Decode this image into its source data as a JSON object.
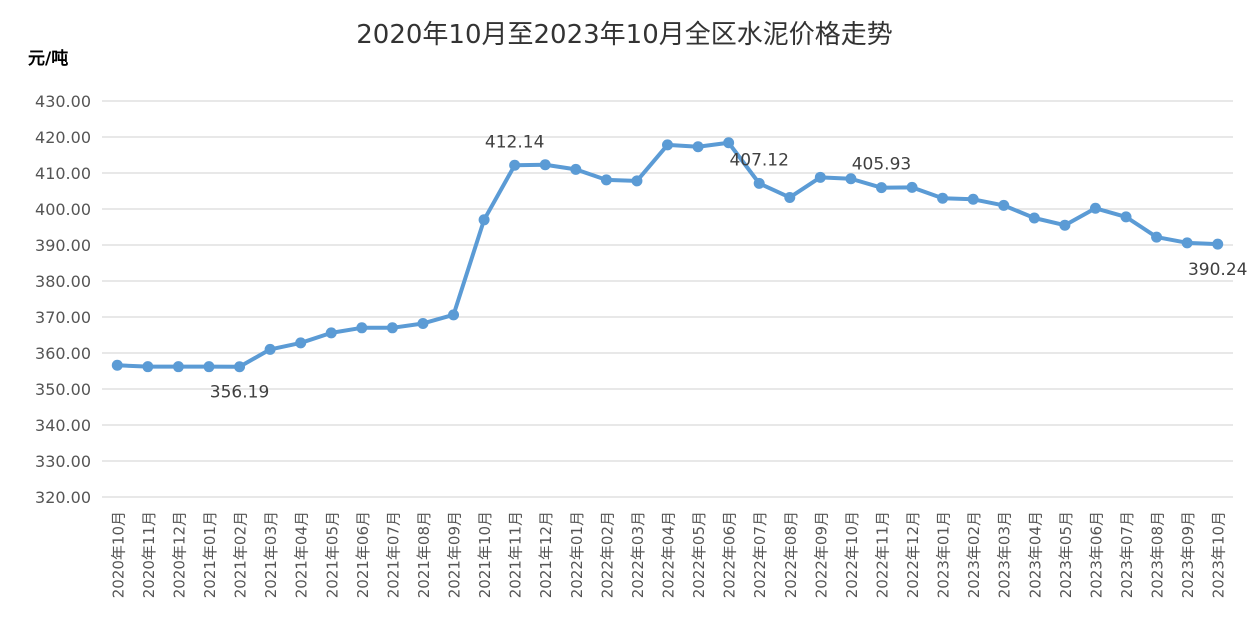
{
  "chart_data": {
    "type": "line",
    "title": "2020年10月至2023年10月全区水泥价格走势",
    "ylabel": "元/吨",
    "xlabel": "",
    "ylim": [
      320,
      430
    ],
    "yticks": [
      "320.00",
      "330.00",
      "340.00",
      "350.00",
      "360.00",
      "370.00",
      "380.00",
      "390.00",
      "400.00",
      "410.00",
      "420.00",
      "430.00"
    ],
    "grid": true,
    "color": "#5B9BD5",
    "categories": [
      "2020年10月",
      "2020年11月",
      "2020年12月",
      "2021年01月",
      "2021年02月",
      "2021年03月",
      "2021年04月",
      "2021年05月",
      "2021年06月",
      "2021年07月",
      "2021年08月",
      "2021年09月",
      "2021年10月",
      "2021年11月",
      "2021年12月",
      "2022年01月",
      "2022年02月",
      "2022年03月",
      "2022年04月",
      "2022年05月",
      "2022年06月",
      "2022年07月",
      "2022年08月",
      "2022年09月",
      "2022年10月",
      "2022年11月",
      "2022年12月",
      "2023年01月",
      "2023年02月",
      "2023年03月",
      "2023年04月",
      "2023年05月",
      "2023年06月",
      "2023年07月",
      "2023年08月",
      "2023年09月",
      "2023年10月"
    ],
    "values": [
      356.6,
      356.2,
      356.2,
      356.2,
      356.19,
      361.0,
      362.8,
      365.6,
      367.0,
      367.0,
      368.2,
      370.6,
      397.0,
      412.14,
      412.3,
      411.0,
      408.1,
      407.8,
      417.8,
      417.3,
      418.4,
      407.12,
      403.2,
      408.8,
      408.4,
      405.93,
      406.0,
      403.0,
      402.7,
      401.0,
      397.5,
      395.5,
      400.2,
      397.8,
      392.2,
      390.6,
      390.24
    ],
    "data_labels": [
      {
        "index": 4,
        "text": "356.19",
        "pos": "below"
      },
      {
        "index": 13,
        "text": "412.14",
        "pos": "above"
      },
      {
        "index": 21,
        "text": "407.12",
        "pos": "above"
      },
      {
        "index": 25,
        "text": "405.93",
        "pos": "above"
      },
      {
        "index": 36,
        "text": "390.24",
        "pos": "below"
      }
    ]
  }
}
